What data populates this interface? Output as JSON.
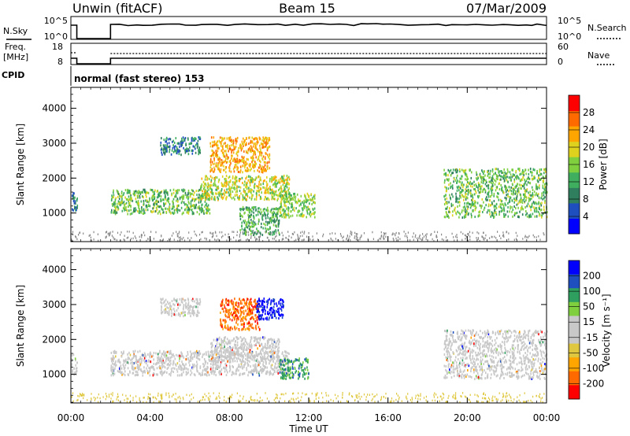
{
  "header": {
    "station": "Unwin (fitACF)",
    "beam": "Beam 15",
    "date": "07/Mar/2009"
  },
  "noise_panel": {
    "left_label": "N.Sky",
    "left_ticks": [
      "10^5",
      "10^0"
    ],
    "right_label": "N.Search",
    "right_ticks": [
      "10^5",
      "10^0"
    ]
  },
  "freq_panel": {
    "left_label_1": "Freq.",
    "left_label_2": "[MHz]",
    "left_ticks": [
      "18",
      "8"
    ],
    "right_label": "Nave",
    "right_ticks": [
      "60",
      "0"
    ]
  },
  "cpid": {
    "label": "CPID",
    "text": "normal (fast stereo) 153"
  },
  "colors": {
    "power_scale": [
      "#0000ff",
      "#1f4fbf",
      "#2f7f5f",
      "#3faf5f",
      "#7fcf3f",
      "#dfd21f",
      "#ffa500",
      "#ff6a00",
      "#ff0000"
    ],
    "velocity_scale": [
      "#ff0000",
      "#ff6a00",
      "#ffa500",
      "#dfc83f",
      "#c8c8c8",
      "#c8c8c8",
      "#7fcf3f",
      "#2f9f5f",
      "#1f4fbf",
      "#0000ff"
    ],
    "ground_scatter": "#8a8a8a"
  },
  "chart_data": [
    {
      "type": "heatmap",
      "name": "power",
      "ylabel": "Slant Range [km]",
      "xlim": [
        0,
        24
      ],
      "ylim": [
        180,
        4600
      ],
      "yticks": [
        "1000",
        "2000",
        "3000",
        "4000"
      ],
      "colorbar": {
        "label": "Power [dB]",
        "range": [
          0,
          32
        ],
        "ticks": [
          "4",
          "8",
          "12",
          "16",
          "20",
          "24",
          "28"
        ]
      },
      "echo_bands": [
        {
          "t_start": 0.0,
          "t_end": 0.3,
          "r_low": 1000,
          "r_high": 1600,
          "level": 8
        },
        {
          "t_start": 2.0,
          "t_end": 7.0,
          "r_low": 1000,
          "r_high": 1700,
          "level": 14
        },
        {
          "t_start": 4.5,
          "t_end": 6.5,
          "r_low": 2700,
          "r_high": 3200,
          "level": 8
        },
        {
          "t_start": 6.5,
          "t_end": 11.0,
          "r_low": 1400,
          "r_high": 2100,
          "level": 18
        },
        {
          "t_start": 7.0,
          "t_end": 10.0,
          "r_low": 2200,
          "r_high": 3200,
          "level": 24
        },
        {
          "t_start": 8.5,
          "t_end": 10.5,
          "r_low": 400,
          "r_high": 1200,
          "level": 12
        },
        {
          "t_start": 10.5,
          "t_end": 12.3,
          "r_low": 900,
          "r_high": 1600,
          "level": 16
        },
        {
          "t_start": 18.8,
          "t_end": 24.0,
          "r_low": 900,
          "r_high": 2300,
          "level": 14
        }
      ]
    },
    {
      "type": "heatmap",
      "name": "velocity",
      "ylabel": "Slant Range [km]",
      "xlabel": "Time UT",
      "xlim": [
        0,
        24
      ],
      "ylim": [
        180,
        4600
      ],
      "yticks": [
        "1000",
        "2000",
        "3000",
        "4000"
      ],
      "xticks": [
        "00:00",
        "04:00",
        "08:00",
        "12:00",
        "16:00",
        "20:00",
        "00:00"
      ],
      "colorbar": {
        "label": "Velocity [m s⁻¹]",
        "ticks": [
          "200",
          "100",
          "50",
          "15",
          "-15",
          "-50",
          "-100",
          "-200"
        ]
      },
      "echo_bands": [
        {
          "t_start": 0.0,
          "t_end": 0.3,
          "r_low": 1000,
          "r_high": 1600,
          "velocity": 0
        },
        {
          "t_start": 2.0,
          "t_end": 11.0,
          "r_low": 1000,
          "r_high": 1700,
          "velocity": 0
        },
        {
          "t_start": 4.5,
          "t_end": 6.5,
          "r_low": 2700,
          "r_high": 3200,
          "velocity": 0
        },
        {
          "t_start": 7.0,
          "t_end": 10.5,
          "r_low": 1400,
          "r_high": 2100,
          "velocity": 0
        },
        {
          "t_start": 7.5,
          "t_end": 9.5,
          "r_low": 2300,
          "r_high": 3200,
          "velocity": -100
        },
        {
          "t_start": 9.3,
          "t_end": 10.7,
          "r_low": 2600,
          "r_high": 3200,
          "velocity": 200
        },
        {
          "t_start": 10.5,
          "t_end": 12.0,
          "r_low": 900,
          "r_high": 1500,
          "velocity": 50
        },
        {
          "t_start": 18.8,
          "t_end": 24.0,
          "r_low": 900,
          "r_high": 2300,
          "velocity": 0
        }
      ]
    }
  ]
}
